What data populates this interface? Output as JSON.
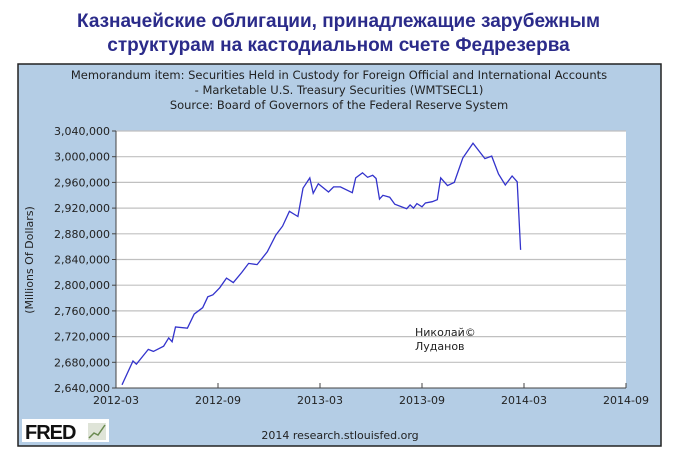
{
  "page_title": {
    "line1": "Казначейские облигации, принадлежащие зарубежным",
    "line2": "структурам на кастодиальном счете Федрезерва"
  },
  "chart_data": {
    "type": "line",
    "title_lines": [
      "Memorandum item: Securities Held in Custody for Foreign Official and International Accounts",
      "- Marketable U.S. Treasury Securities (WMTSECL1)",
      "Source: Board of Governors of the Federal Reserve System"
    ],
    "xlabel": "",
    "ylabel": "(Millions Of Dollars)",
    "x_unit": "months since 2012-03",
    "xlim": [
      0,
      30
    ],
    "x_ticks": [
      {
        "value": 0,
        "label": "2012-03"
      },
      {
        "value": 6,
        "label": "2012-09"
      },
      {
        "value": 12,
        "label": "2013-03"
      },
      {
        "value": 18,
        "label": "2013-09"
      },
      {
        "value": 24,
        "label": "2014-03"
      },
      {
        "value": 30,
        "label": "2014-09"
      }
    ],
    "ylim": [
      2640000,
      3040000
    ],
    "y_ticks": [
      {
        "value": 2640000,
        "label": "2,640,000"
      },
      {
        "value": 2680000,
        "label": "2,680,000"
      },
      {
        "value": 2720000,
        "label": "2,720,000"
      },
      {
        "value": 2760000,
        "label": "2,760,000"
      },
      {
        "value": 2800000,
        "label": "2,800,000"
      },
      {
        "value": 2840000,
        "label": "2,840,000"
      },
      {
        "value": 2880000,
        "label": "2,880,000"
      },
      {
        "value": 2920000,
        "label": "2,920,000"
      },
      {
        "value": 2960000,
        "label": "2,960,000"
      },
      {
        "value": 3000000,
        "label": "3,000,000"
      },
      {
        "value": 3040000,
        "label": "3,040,000"
      }
    ],
    "grid": true,
    "series": [
      {
        "name": "WMTSECL1",
        "color": "#3333cc",
        "x": [
          0.35,
          1.0,
          1.2,
          1.9,
          2.2,
          2.8,
          3.1,
          3.3,
          3.5,
          4.2,
          4.6,
          5.1,
          5.4,
          5.7,
          6.1,
          6.5,
          6.9,
          7.4,
          7.8,
          8.3,
          8.9,
          9.4,
          9.8,
          10.2,
          10.7,
          11.0,
          11.4,
          11.6,
          11.9,
          12.5,
          12.8,
          13.2,
          13.9,
          14.1,
          14.5,
          14.8,
          15.1,
          15.3,
          15.5,
          15.7,
          16.1,
          16.4,
          17.1,
          17.3,
          17.5,
          17.7,
          18.0,
          18.2,
          18.6,
          18.9,
          19.1,
          19.5,
          19.9,
          20.4,
          21.0,
          21.7,
          22.1,
          22.5,
          22.9,
          23.3,
          23.6,
          23.8
        ],
        "y": [
          2645000,
          2682000,
          2677000,
          2700000,
          2697000,
          2705000,
          2718000,
          2712000,
          2735000,
          2733000,
          2755000,
          2765000,
          2782000,
          2785000,
          2796000,
          2811000,
          2804000,
          2820000,
          2834000,
          2832000,
          2852000,
          2878000,
          2892000,
          2915000,
          2907000,
          2951000,
          2967000,
          2943000,
          2958000,
          2945000,
          2953000,
          2953000,
          2944000,
          2967000,
          2975000,
          2968000,
          2971000,
          2966000,
          2934000,
          2940000,
          2937000,
          2926000,
          2919000,
          2925000,
          2920000,
          2927000,
          2922000,
          2928000,
          2930000,
          2933000,
          2967000,
          2955000,
          2960000,
          2998000,
          3021000,
          2997000,
          3001000,
          2973000,
          2956000,
          2970000,
          2961000,
          2855000
        ]
      }
    ],
    "annotation": {
      "line1": "Николай©",
      "line2": "Луданов"
    }
  },
  "footer": {
    "logo": "FRED",
    "credit": "2014 research.stlouisfed.org"
  },
  "colors": {
    "panel": "#b4cde5",
    "title": "#2b2b8a",
    "line": "#3333cc"
  }
}
